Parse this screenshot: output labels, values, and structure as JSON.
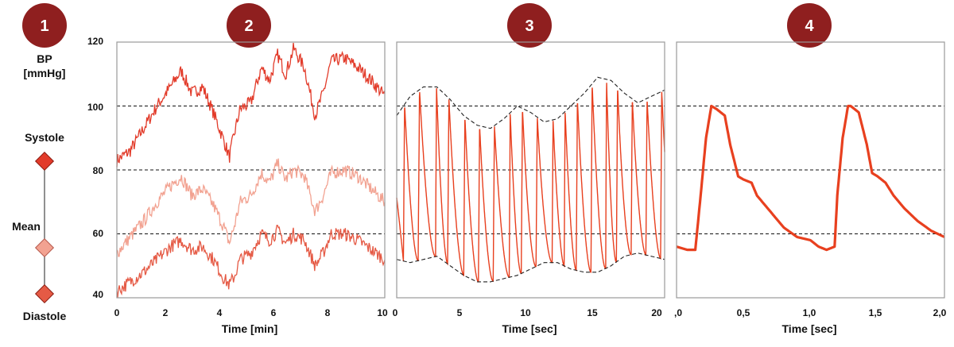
{
  "badges": [
    "1",
    "2",
    "3",
    "4"
  ],
  "legend": {
    "bp_label": "BP",
    "unit_label": "[mmHg]",
    "items": [
      {
        "label": "Systole",
        "color": "#e23b2a"
      },
      {
        "label": "Mean",
        "color": "#f2a291"
      },
      {
        "label": "Diastole",
        "color": "#e55a45"
      }
    ]
  },
  "colors": {
    "systole": "#e23b2a",
    "mean": "#f2a291",
    "diastole": "#e55a45",
    "wave": "#e8401f",
    "badge": "#8f1f1f"
  },
  "chart_data": [
    {
      "type": "line",
      "xlabel": "Time [min]",
      "ylabel": "BP [mmHg]",
      "xlim": [
        0,
        10
      ],
      "ylim": [
        40,
        120
      ],
      "xticks": [
        "0",
        "2",
        "4",
        "6",
        "8",
        "10"
      ],
      "yticks": [
        "40",
        "60",
        "80",
        "100",
        "120"
      ],
      "reference_lines": [
        60,
        80,
        100
      ],
      "series": [
        {
          "name": "Systole",
          "x": [
            0,
            0.5,
            1,
            1.5,
            2,
            2.4,
            2.8,
            3.2,
            3.6,
            4,
            4.2,
            4.4,
            4.6,
            5,
            5.4,
            5.7,
            6,
            6.3,
            6.6,
            7,
            7.4,
            7.7,
            8,
            8.5,
            9,
            9.5,
            10
          ],
          "y": [
            83,
            86,
            93,
            100,
            106,
            111,
            104,
            106,
            98,
            89,
            84,
            92,
            99,
            101,
            112,
            108,
            116,
            110,
            118,
            112,
            97,
            104,
            114,
            115,
            112,
            108,
            103
          ]
        },
        {
          "name": "Mean",
          "x": [
            0,
            0.5,
            1,
            1.5,
            2,
            2.4,
            2.8,
            3.2,
            3.6,
            4,
            4.2,
            4.4,
            4.6,
            5,
            5.4,
            5.7,
            6,
            6.3,
            6.6,
            7,
            7.4,
            7.7,
            8,
            8.5,
            9,
            9.5,
            10
          ],
          "y": [
            54,
            59,
            64,
            70,
            75,
            78,
            72,
            74,
            69,
            62,
            57,
            63,
            70,
            72,
            79,
            76,
            82,
            77,
            80,
            78,
            67,
            72,
            79,
            80,
            78,
            74,
            70
          ]
        },
        {
          "name": "Diastole",
          "x": [
            0,
            0.5,
            1,
            1.5,
            2,
            2.4,
            2.8,
            3.2,
            3.6,
            4,
            4.2,
            4.4,
            4.6,
            5,
            5.4,
            5.7,
            6,
            6.3,
            6.6,
            7,
            7.4,
            7.7,
            8,
            8.5,
            9,
            9.5,
            10
          ],
          "y": [
            42,
            45,
            48,
            52,
            56,
            58,
            55,
            56,
            52,
            46,
            44,
            47,
            52,
            54,
            60,
            58,
            61,
            57,
            60,
            58,
            50,
            54,
            60,
            60,
            58,
            55,
            52
          ]
        }
      ]
    },
    {
      "type": "line",
      "xlabel": "Time [sec]",
      "xlim": [
        0,
        20
      ],
      "ylim": [
        40,
        120
      ],
      "xticks": [
        "0",
        "5",
        "10",
        "15",
        "20"
      ],
      "reference_lines": [
        60,
        80,
        100
      ],
      "beat_times": [
        0.5,
        1.6,
        2.9,
        3.8,
        5.0,
        6.1,
        7.2,
        8.4,
        9.3,
        10.4,
        11.6,
        12.5,
        13.4,
        14.5,
        15.6,
        16.4,
        17.5,
        18.6,
        19.7
      ],
      "upper_envelope": {
        "x": [
          0,
          1,
          2,
          3,
          4,
          5,
          6,
          7,
          8,
          9,
          10,
          11,
          12,
          13,
          14,
          15,
          16,
          17,
          18,
          19,
          20
        ],
        "y": [
          97,
          103,
          106,
          106,
          102,
          97,
          94,
          93,
          96,
          100,
          98,
          95,
          96,
          100,
          104,
          109,
          108,
          104,
          101,
          103,
          105
        ]
      },
      "lower_envelope": {
        "x": [
          0,
          1,
          2,
          3,
          4,
          5,
          6,
          7,
          8,
          9,
          10,
          11,
          12,
          13,
          14,
          15,
          16,
          17,
          18,
          19,
          20
        ],
        "y": [
          52,
          51,
          52,
          53,
          50,
          47,
          45,
          45,
          46,
          47,
          49,
          51,
          51,
          49,
          48,
          48,
          50,
          53,
          54,
          53,
          52
        ]
      }
    },
    {
      "type": "line",
      "xlabel": "Time [sec]",
      "xlim": [
        0,
        2
      ],
      "ylim": [
        40,
        120
      ],
      "xticks": [
        ",0",
        "0,5",
        "1,0",
        "1,5",
        "2,0"
      ],
      "reference_lines": [
        60,
        80,
        100
      ],
      "x": [
        0,
        0.08,
        0.14,
        0.18,
        0.22,
        0.26,
        0.3,
        0.36,
        0.4,
        0.46,
        0.5,
        0.56,
        0.6,
        0.7,
        0.8,
        0.9,
        1.0,
        1.06,
        1.12,
        1.18,
        1.2,
        1.24,
        1.28,
        1.3,
        1.36,
        1.42,
        1.46,
        1.5,
        1.56,
        1.62,
        1.7,
        1.8,
        1.9,
        2.0
      ],
      "y": [
        56,
        55,
        55,
        72,
        90,
        100,
        99,
        97,
        88,
        78,
        77,
        76,
        72,
        67,
        62,
        59,
        58,
        56,
        55,
        56,
        72,
        90,
        100,
        100,
        98,
        88,
        79,
        78,
        76,
        72,
        68,
        64,
        61,
        59
      ]
    }
  ]
}
